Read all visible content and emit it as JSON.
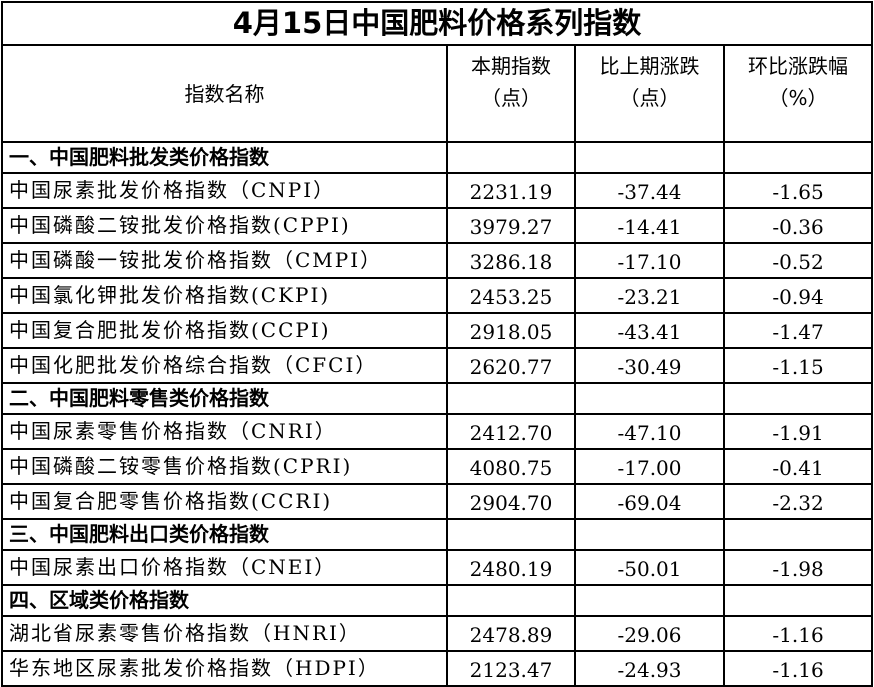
{
  "title": "4月15日中国肥料价格系列指数",
  "headers": {
    "name": "指数名称",
    "current": "本期指数",
    "current_unit": "（点）",
    "change": "比上期涨跌",
    "change_unit": "（点）",
    "pct": "环比涨跌幅",
    "pct_unit": "（%）"
  },
  "sections": [
    {
      "title": "一、中国肥料批发类价格指数",
      "rows": [
        {
          "name": "中国尿素批发价格指数（CNPI）",
          "value": "2231.19",
          "change": "-37.44",
          "pct": "-1.65"
        },
        {
          "name": "中国磷酸二铵批发价格指数(CPPI)",
          "value": "3979.27",
          "change": "-14.41",
          "pct": "-0.36"
        },
        {
          "name": "中国磷酸一铵批发价格指数（CMPI）",
          "value": "3286.18",
          "change": "-17.10",
          "pct": "-0.52"
        },
        {
          "name": "中国氯化钾批发价格指数(CKPI)",
          "value": "2453.25",
          "change": "-23.21",
          "pct": "-0.94"
        },
        {
          "name": "中国复合肥批发价格指数(CCPI)",
          "value": "2918.05",
          "change": "-43.41",
          "pct": "-1.47"
        },
        {
          "name": "中国化肥批发价格综合指数（CFCI）",
          "value": "2620.77",
          "change": "-30.49",
          "pct": "-1.15"
        }
      ]
    },
    {
      "title": "二、中国肥料零售类价格指数",
      "rows": [
        {
          "name": "中国尿素零售价格指数（CNRI）",
          "value": "2412.70",
          "change": "-47.10",
          "pct": "-1.91"
        },
        {
          "name": "中国磷酸二铵零售价格指数(CPRI)",
          "value": "4080.75",
          "change": "-17.00",
          "pct": "-0.41"
        },
        {
          "name": "中国复合肥零售价格指数(CCRI)",
          "value": "2904.70",
          "change": "-69.04",
          "pct": "-2.32"
        }
      ]
    },
    {
      "title": "三、中国肥料出口类价格指数",
      "rows": [
        {
          "name": "中国尿素出口价格指数（CNEI）",
          "value": "2480.19",
          "change": "-50.01",
          "pct": "-1.98"
        }
      ]
    },
    {
      "title": "四、区域类价格指数",
      "rows": [
        {
          "name": "湖北省尿素零售价格指数（HNRI）",
          "value": "2478.89",
          "change": "-29.06",
          "pct": "-1.16"
        },
        {
          "name": "华东地区尿素批发价格指数（HDPI）",
          "value": "2123.47",
          "change": "-24.93",
          "pct": "-1.16"
        }
      ]
    }
  ]
}
